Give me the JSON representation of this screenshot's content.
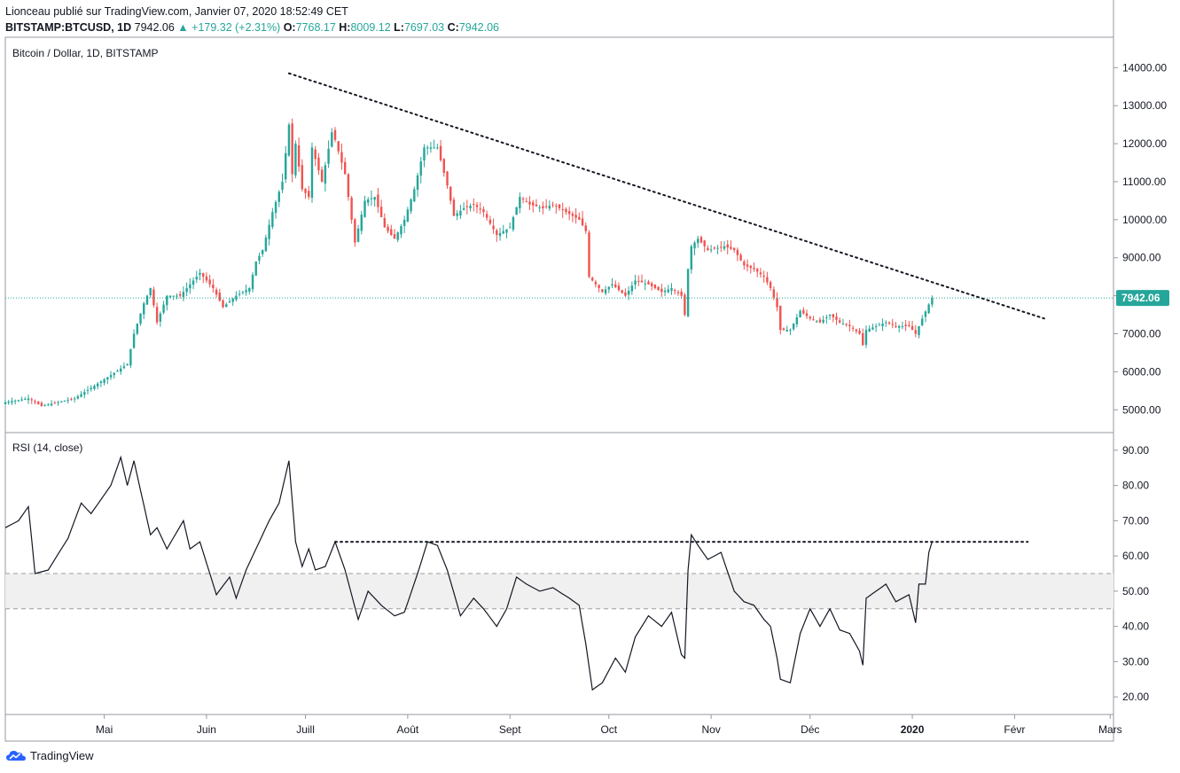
{
  "header": {
    "publish_line": "Lionceau publié sur TradingView.com, Janvier 07, 2020 18:52:49 CET",
    "symbol": "BITSTAMP:BTCUSD, 1D",
    "last": "7942.06",
    "change": "▲ +179.32 (+2.31%)",
    "open_label": "O:",
    "open": "7768.17",
    "high_label": "H:",
    "high": "8009.12",
    "low_label": "L:",
    "low": "7697.03",
    "close_label": "C:",
    "close": "7942.06"
  },
  "footer": {
    "brand": "TradingView"
  },
  "colors": {
    "up": "#26a69a",
    "down": "#ef5350",
    "last_price": "#26a69a",
    "rsi_line": "#131722",
    "rsi_band": "#f0f0f0"
  },
  "chart_data": [
    {
      "type": "candlestick",
      "title": "Bitcoin / Dollar, 1D, BITSTAMP",
      "ylim": [
        4400,
        14800
      ],
      "y_ticks": [
        "14000.00",
        "13000.00",
        "12000.00",
        "11000.00",
        "10000.00",
        "9000.00",
        "8000.00",
        "7000.00",
        "6000.00",
        "5000.00"
      ],
      "last_price_label": "7942.06",
      "last_price": 7942.06,
      "x_start": "2019-04-01",
      "x_end": "2020-03-02",
      "x_ticks": [
        {
          "date": "2019-05-01",
          "label": "Mai"
        },
        {
          "date": "2019-06-01",
          "label": "Juin"
        },
        {
          "date": "2019-07-01",
          "label": "Juill"
        },
        {
          "date": "2019-08-01",
          "label": "Août"
        },
        {
          "date": "2019-09-01",
          "label": "Sept"
        },
        {
          "date": "2019-10-01",
          "label": "Oct"
        },
        {
          "date": "2019-11-01",
          "label": "Nov"
        },
        {
          "date": "2019-12-01",
          "label": "Déc"
        },
        {
          "date": "2020-01-01",
          "label": "2020",
          "bold": true
        },
        {
          "date": "2020-02-01",
          "label": "Févr"
        },
        {
          "date": "2020-03-01",
          "label": "Mars"
        }
      ],
      "close_anchors": [
        [
          "2019-04-01",
          5200
        ],
        [
          "2019-04-08",
          5300
        ],
        [
          "2019-04-12",
          5100
        ],
        [
          "2019-04-22",
          5300
        ],
        [
          "2019-05-01",
          5800
        ],
        [
          "2019-05-08",
          6200
        ],
        [
          "2019-05-10",
          7000
        ],
        [
          "2019-05-13",
          7800
        ],
        [
          "2019-05-15",
          8200
        ],
        [
          "2019-05-17",
          7300
        ],
        [
          "2019-05-20",
          8000
        ],
        [
          "2019-05-24",
          8000
        ],
        [
          "2019-05-30",
          8600
        ],
        [
          "2019-06-03",
          8200
        ],
        [
          "2019-06-06",
          7700
        ],
        [
          "2019-06-10",
          8000
        ],
        [
          "2019-06-14",
          8200
        ],
        [
          "2019-06-16",
          8900
        ],
        [
          "2019-06-18",
          9200
        ],
        [
          "2019-06-21",
          10200
        ],
        [
          "2019-06-24",
          11000
        ],
        [
          "2019-06-26",
          12500
        ],
        [
          "2019-06-27",
          11200
        ],
        [
          "2019-06-28",
          12000
        ],
        [
          "2019-06-30",
          10800
        ],
        [
          "2019-07-02",
          10600
        ],
        [
          "2019-07-03",
          11900
        ],
        [
          "2019-07-06",
          11000
        ],
        [
          "2019-07-09",
          12300
        ],
        [
          "2019-07-10",
          12100
        ],
        [
          "2019-07-13",
          11200
        ],
        [
          "2019-07-16",
          9400
        ],
        [
          "2019-07-19",
          10500
        ],
        [
          "2019-07-22",
          10600
        ],
        [
          "2019-07-25",
          9800
        ],
        [
          "2019-07-28",
          9500
        ],
        [
          "2019-07-31",
          10000
        ],
        [
          "2019-08-03",
          10800
        ],
        [
          "2019-08-06",
          11900
        ],
        [
          "2019-08-10",
          11900
        ],
        [
          "2019-08-13",
          10900
        ],
        [
          "2019-08-15",
          10100
        ],
        [
          "2019-08-18",
          10300
        ],
        [
          "2019-08-21",
          10400
        ],
        [
          "2019-08-24",
          10200
        ],
        [
          "2019-08-28",
          9600
        ],
        [
          "2019-09-01",
          9800
        ],
        [
          "2019-09-04",
          10600
        ],
        [
          "2019-09-07",
          10400
        ],
        [
          "2019-09-11",
          10300
        ],
        [
          "2019-09-14",
          10400
        ],
        [
          "2019-09-18",
          10200
        ],
        [
          "2019-09-22",
          10000
        ],
        [
          "2019-09-24",
          9700
        ],
        [
          "2019-09-25",
          8500
        ],
        [
          "2019-09-29",
          8100
        ],
        [
          "2019-10-02",
          8300
        ],
        [
          "2019-10-06",
          8000
        ],
        [
          "2019-10-09",
          8400
        ],
        [
          "2019-10-13",
          8300
        ],
        [
          "2019-10-17",
          8100
        ],
        [
          "2019-10-20",
          8200
        ],
        [
          "2019-10-23",
          8000
        ],
        [
          "2019-10-24",
          7500
        ],
        [
          "2019-10-25",
          8700
        ],
        [
          "2019-10-26",
          9300
        ],
        [
          "2019-10-28",
          9500
        ],
        [
          "2019-10-31",
          9200
        ],
        [
          "2019-11-05",
          9300
        ],
        [
          "2019-11-08",
          9200
        ],
        [
          "2019-11-11",
          8800
        ],
        [
          "2019-11-14",
          8700
        ],
        [
          "2019-11-17",
          8500
        ],
        [
          "2019-11-19",
          8200
        ],
        [
          "2019-11-21",
          7700
        ],
        [
          "2019-11-22",
          7100
        ],
        [
          "2019-11-25",
          7100
        ],
        [
          "2019-11-28",
          7600
        ],
        [
          "2019-12-01",
          7400
        ],
        [
          "2019-12-04",
          7300
        ],
        [
          "2019-12-07",
          7500
        ],
        [
          "2019-12-10",
          7300
        ],
        [
          "2019-12-13",
          7200
        ],
        [
          "2019-12-16",
          7000
        ],
        [
          "2019-12-17",
          6700
        ],
        [
          "2019-12-18",
          7100
        ],
        [
          "2019-12-21",
          7200
        ],
        [
          "2019-12-24",
          7300
        ],
        [
          "2019-12-27",
          7200
        ],
        [
          "2019-12-31",
          7200
        ],
        [
          "2020-01-02",
          7000
        ],
        [
          "2020-01-04",
          7400
        ],
        [
          "2020-01-06",
          7768
        ],
        [
          "2020-01-07",
          7942
        ]
      ],
      "trendline": {
        "from": [
          "2019-06-26",
          13850
        ],
        "to": [
          "2020-02-10",
          7400
        ]
      }
    },
    {
      "type": "line",
      "title": "RSI (14, close)",
      "ylim": [
        15,
        95
      ],
      "y_ticks": [
        "90.00",
        "80.00",
        "70.00",
        "60.00",
        "50.00",
        "40.00",
        "30.00",
        "20.00"
      ],
      "band": [
        45,
        55
      ],
      "anchors": [
        [
          "2019-04-01",
          68
        ],
        [
          "2019-04-05",
          70
        ],
        [
          "2019-04-08",
          74
        ],
        [
          "2019-04-10",
          55
        ],
        [
          "2019-04-14",
          56
        ],
        [
          "2019-04-20",
          65
        ],
        [
          "2019-04-24",
          75
        ],
        [
          "2019-04-27",
          72
        ],
        [
          "2019-05-03",
          80
        ],
        [
          "2019-05-06",
          88
        ],
        [
          "2019-05-08",
          80
        ],
        [
          "2019-05-10",
          87
        ],
        [
          "2019-05-15",
          66
        ],
        [
          "2019-05-17",
          68
        ],
        [
          "2019-05-20",
          62
        ],
        [
          "2019-05-25",
          70
        ],
        [
          "2019-05-27",
          62
        ],
        [
          "2019-05-30",
          64
        ],
        [
          "2019-06-02",
          55
        ],
        [
          "2019-06-04",
          49
        ],
        [
          "2019-06-08",
          54
        ],
        [
          "2019-06-10",
          48
        ],
        [
          "2019-06-13",
          56
        ],
        [
          "2019-06-17",
          64
        ],
        [
          "2019-06-20",
          70
        ],
        [
          "2019-06-23",
          75
        ],
        [
          "2019-06-26",
          87
        ],
        [
          "2019-06-28",
          64
        ],
        [
          "2019-06-30",
          57
        ],
        [
          "2019-07-02",
          62
        ],
        [
          "2019-07-04",
          56
        ],
        [
          "2019-07-07",
          57
        ],
        [
          "2019-07-10",
          64
        ],
        [
          "2019-07-13",
          56
        ],
        [
          "2019-07-17",
          42
        ],
        [
          "2019-07-20",
          50
        ],
        [
          "2019-07-24",
          46
        ],
        [
          "2019-07-28",
          43
        ],
        [
          "2019-07-31",
          44
        ],
        [
          "2019-08-04",
          55
        ],
        [
          "2019-08-07",
          64
        ],
        [
          "2019-08-10",
          63
        ],
        [
          "2019-08-13",
          56
        ],
        [
          "2019-08-17",
          43
        ],
        [
          "2019-08-21",
          48
        ],
        [
          "2019-08-24",
          45
        ],
        [
          "2019-08-28",
          40
        ],
        [
          "2019-08-31",
          45
        ],
        [
          "2019-09-03",
          54
        ],
        [
          "2019-09-06",
          52
        ],
        [
          "2019-09-10",
          50
        ],
        [
          "2019-09-14",
          51
        ],
        [
          "2019-09-19",
          48
        ],
        [
          "2019-09-22",
          46
        ],
        [
          "2019-09-24",
          35
        ],
        [
          "2019-09-26",
          22
        ],
        [
          "2019-09-29",
          24
        ],
        [
          "2019-10-03",
          31
        ],
        [
          "2019-10-06",
          27
        ],
        [
          "2019-10-09",
          37
        ],
        [
          "2019-10-13",
          43
        ],
        [
          "2019-10-17",
          40
        ],
        [
          "2019-10-20",
          44
        ],
        [
          "2019-10-23",
          32
        ],
        [
          "2019-10-24",
          31
        ],
        [
          "2019-10-25",
          56
        ],
        [
          "2019-10-26",
          66
        ],
        [
          "2019-10-28",
          63
        ],
        [
          "2019-10-31",
          59
        ],
        [
          "2019-11-04",
          61
        ],
        [
          "2019-11-08",
          50
        ],
        [
          "2019-11-11",
          47
        ],
        [
          "2019-11-14",
          46
        ],
        [
          "2019-11-17",
          42
        ],
        [
          "2019-11-19",
          40
        ],
        [
          "2019-11-21",
          31
        ],
        [
          "2019-11-22",
          25
        ],
        [
          "2019-11-25",
          24
        ],
        [
          "2019-11-28",
          38
        ],
        [
          "2019-12-01",
          45
        ],
        [
          "2019-12-04",
          40
        ],
        [
          "2019-12-07",
          45
        ],
        [
          "2019-12-10",
          39
        ],
        [
          "2019-12-13",
          38
        ],
        [
          "2019-12-16",
          33
        ],
        [
          "2019-12-17",
          29
        ],
        [
          "2019-12-18",
          48
        ],
        [
          "2019-12-21",
          50
        ],
        [
          "2019-12-24",
          52
        ],
        [
          "2019-12-27",
          47
        ],
        [
          "2019-12-31",
          49
        ],
        [
          "2020-01-02",
          41
        ],
        [
          "2020-01-03",
          52
        ],
        [
          "2020-01-05",
          52
        ],
        [
          "2020-01-06",
          61
        ],
        [
          "2020-01-07",
          64
        ]
      ],
      "resistance": {
        "from": [
          "2019-07-10",
          64
        ],
        "to": [
          "2020-02-05",
          64
        ]
      }
    }
  ]
}
